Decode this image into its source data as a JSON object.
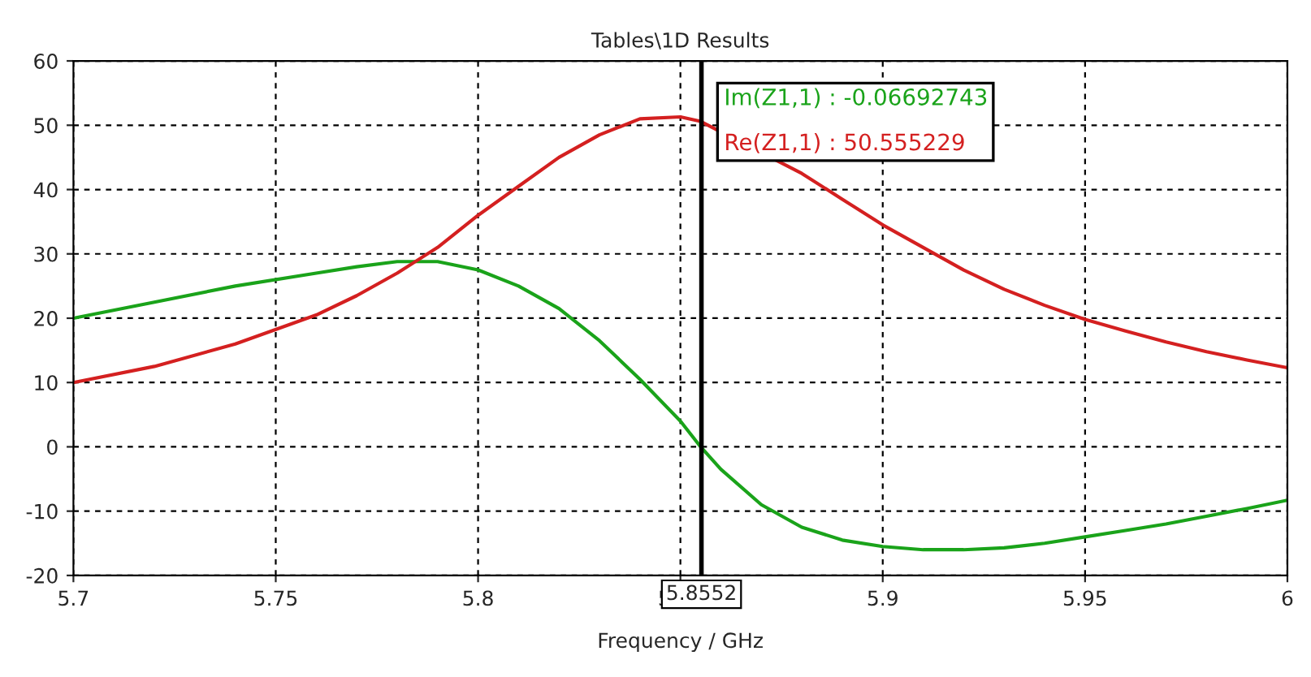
{
  "chart_data": {
    "type": "line",
    "title": "Tables\\1D Results",
    "xlabel": "Frequency / GHz",
    "xlim": [
      5.7,
      6
    ],
    "xticks": [
      5.7,
      5.75,
      5.8,
      5.85,
      5.9,
      5.95,
      6
    ],
    "ylim": [
      -20,
      60
    ],
    "yticks": [
      -20,
      -10,
      0,
      10,
      20,
      30,
      40,
      50,
      60
    ],
    "grid": true,
    "legend": false,
    "line_style": "solid",
    "marker": "none",
    "ref_lines": [
      {
        "axis": "x",
        "value": 5.8552,
        "label": "5.8552",
        "color": "#000000"
      }
    ],
    "annotations": [
      "Im(Z1,1) : -0.06692743",
      "Re(Z1,1) : 50.555229"
    ],
    "series": [
      {
        "color": "#1aa31a",
        "x": [
          5.7,
          5.72,
          5.74,
          5.76,
          5.77,
          5.78,
          5.79,
          5.8,
          5.81,
          5.82,
          5.83,
          5.84,
          5.85,
          5.855,
          5.86,
          5.87,
          5.88,
          5.89,
          5.9,
          5.91,
          5.92,
          5.93,
          5.94,
          5.95,
          5.96,
          5.97,
          5.98,
          5.99,
          6.0
        ],
        "values": [
          20,
          22.5,
          25,
          27,
          28,
          28.8,
          28.8,
          27.5,
          25,
          21.5,
          16.5,
          10.5,
          4,
          0,
          -3.5,
          -9,
          -12.5,
          -14.5,
          -15.5,
          -16,
          -16,
          -15.7,
          -15,
          -14,
          -13,
          -12,
          -10.8,
          -9.6,
          -8.3
        ]
      },
      {
        "color": "#d42020",
        "x": [
          5.7,
          5.72,
          5.74,
          5.76,
          5.77,
          5.78,
          5.79,
          5.8,
          5.81,
          5.82,
          5.83,
          5.84,
          5.85,
          5.855,
          5.86,
          5.87,
          5.88,
          5.89,
          5.9,
          5.91,
          5.92,
          5.93,
          5.94,
          5.95,
          5.96,
          5.97,
          5.98,
          5.99,
          6.0
        ],
        "values": [
          10,
          12.5,
          16,
          20.5,
          23.5,
          27,
          31,
          36,
          40.5,
          45,
          48.5,
          51,
          51.3,
          50.6,
          null,
          null,
          42.5,
          38.5,
          34.5,
          31,
          27.5,
          24.5,
          22,
          19.8,
          18,
          16.3,
          14.8,
          13.5,
          12.3
        ]
      }
    ]
  }
}
